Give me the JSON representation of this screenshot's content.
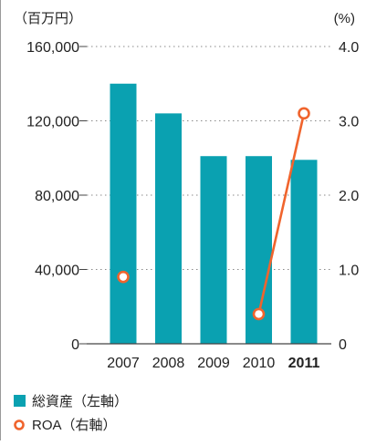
{
  "chart_data": {
    "type": "bar",
    "left_unit": "（百万円）",
    "right_unit": "(%)",
    "categories": [
      "2007",
      "2008",
      "2009",
      "2010",
      "2011"
    ],
    "highlight_category": "2011",
    "left_axis": {
      "ticks": [
        "0",
        "40,000",
        "80,000",
        "120,000",
        "160,000"
      ],
      "range": [
        0,
        160000
      ]
    },
    "right_axis": {
      "ticks": [
        "0",
        "1.0",
        "2.0",
        "3.0",
        "4.0"
      ],
      "range": [
        0,
        4.0
      ]
    },
    "gridlines": "dotted",
    "legend_position": "bottom-left",
    "series": [
      {
        "name": "総資産（左軸）",
        "type": "bar",
        "axis": "left",
        "color": "#0aa1b1",
        "values": [
          140000,
          124000,
          101000,
          101000,
          99000
        ]
      },
      {
        "name": "ROA（右軸）",
        "type": "line",
        "axis": "right",
        "color": "#f0642d",
        "values": [
          0.9,
          null,
          null,
          0.4,
          3.1
        ],
        "connect": [
          [
            3,
            4
          ]
        ]
      }
    ]
  }
}
